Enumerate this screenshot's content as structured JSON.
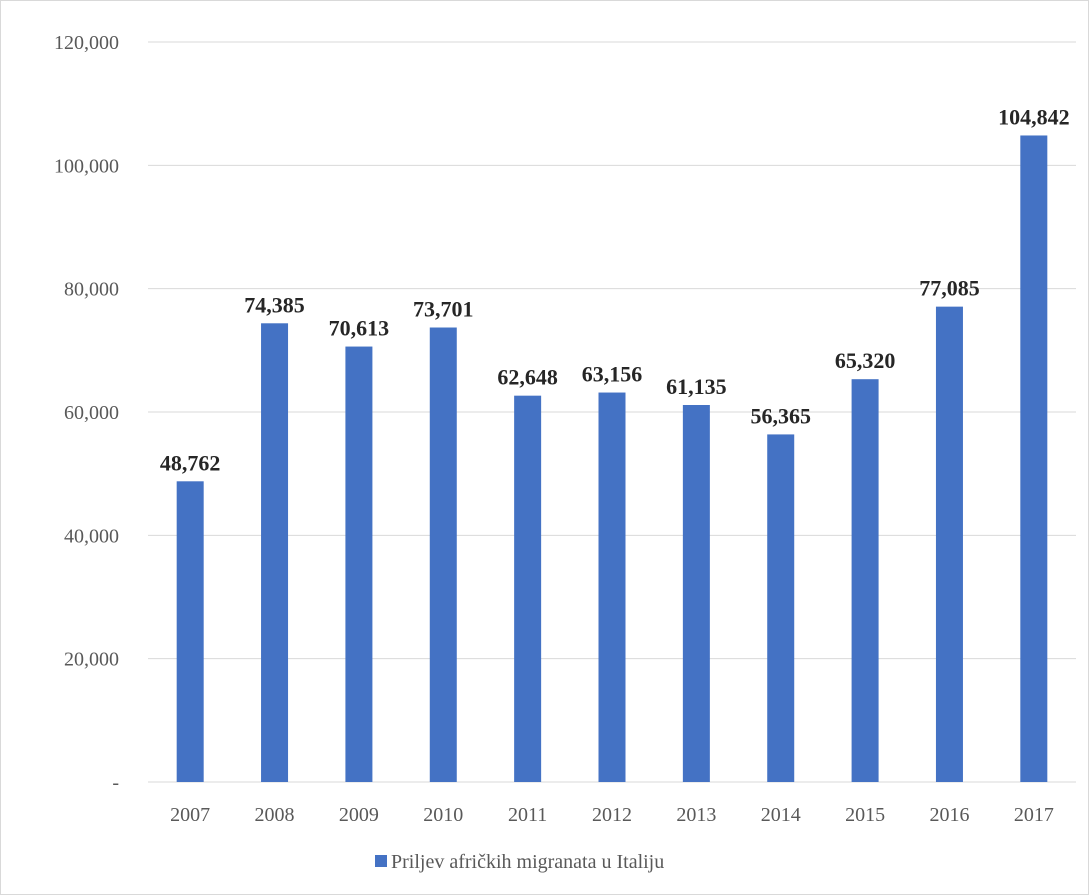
{
  "chart_data": {
    "type": "bar",
    "categories": [
      "2007",
      "2008",
      "2009",
      "2010",
      "2011",
      "2012",
      "2013",
      "2014",
      "2015",
      "2016",
      "2017"
    ],
    "series": [
      {
        "name": "Priljev afričkih migranata u Italiju",
        "values": [
          48762,
          74385,
          70613,
          73701,
          62648,
          63156,
          61135,
          56365,
          65320,
          77085,
          104842
        ],
        "value_labels": [
          "48,762",
          "74,385",
          "70,613",
          "73,701",
          "62,648",
          "63,156",
          "61,135",
          "56,365",
          "65,320",
          "77,085",
          "104,842"
        ],
        "color": "#4472c4"
      }
    ],
    "ylim": [
      0,
      120000
    ],
    "yticks": [
      0,
      20000,
      40000,
      60000,
      80000,
      100000,
      120000
    ],
    "ytick_labels": [
      "-",
      "20,000",
      "40,000",
      "60,000",
      "80,000",
      "100,000",
      "120,000"
    ],
    "grid": true,
    "gridline_color": "#d9d9d9",
    "legend_position": "bottom",
    "title": "",
    "xlabel": "",
    "ylabel": ""
  }
}
